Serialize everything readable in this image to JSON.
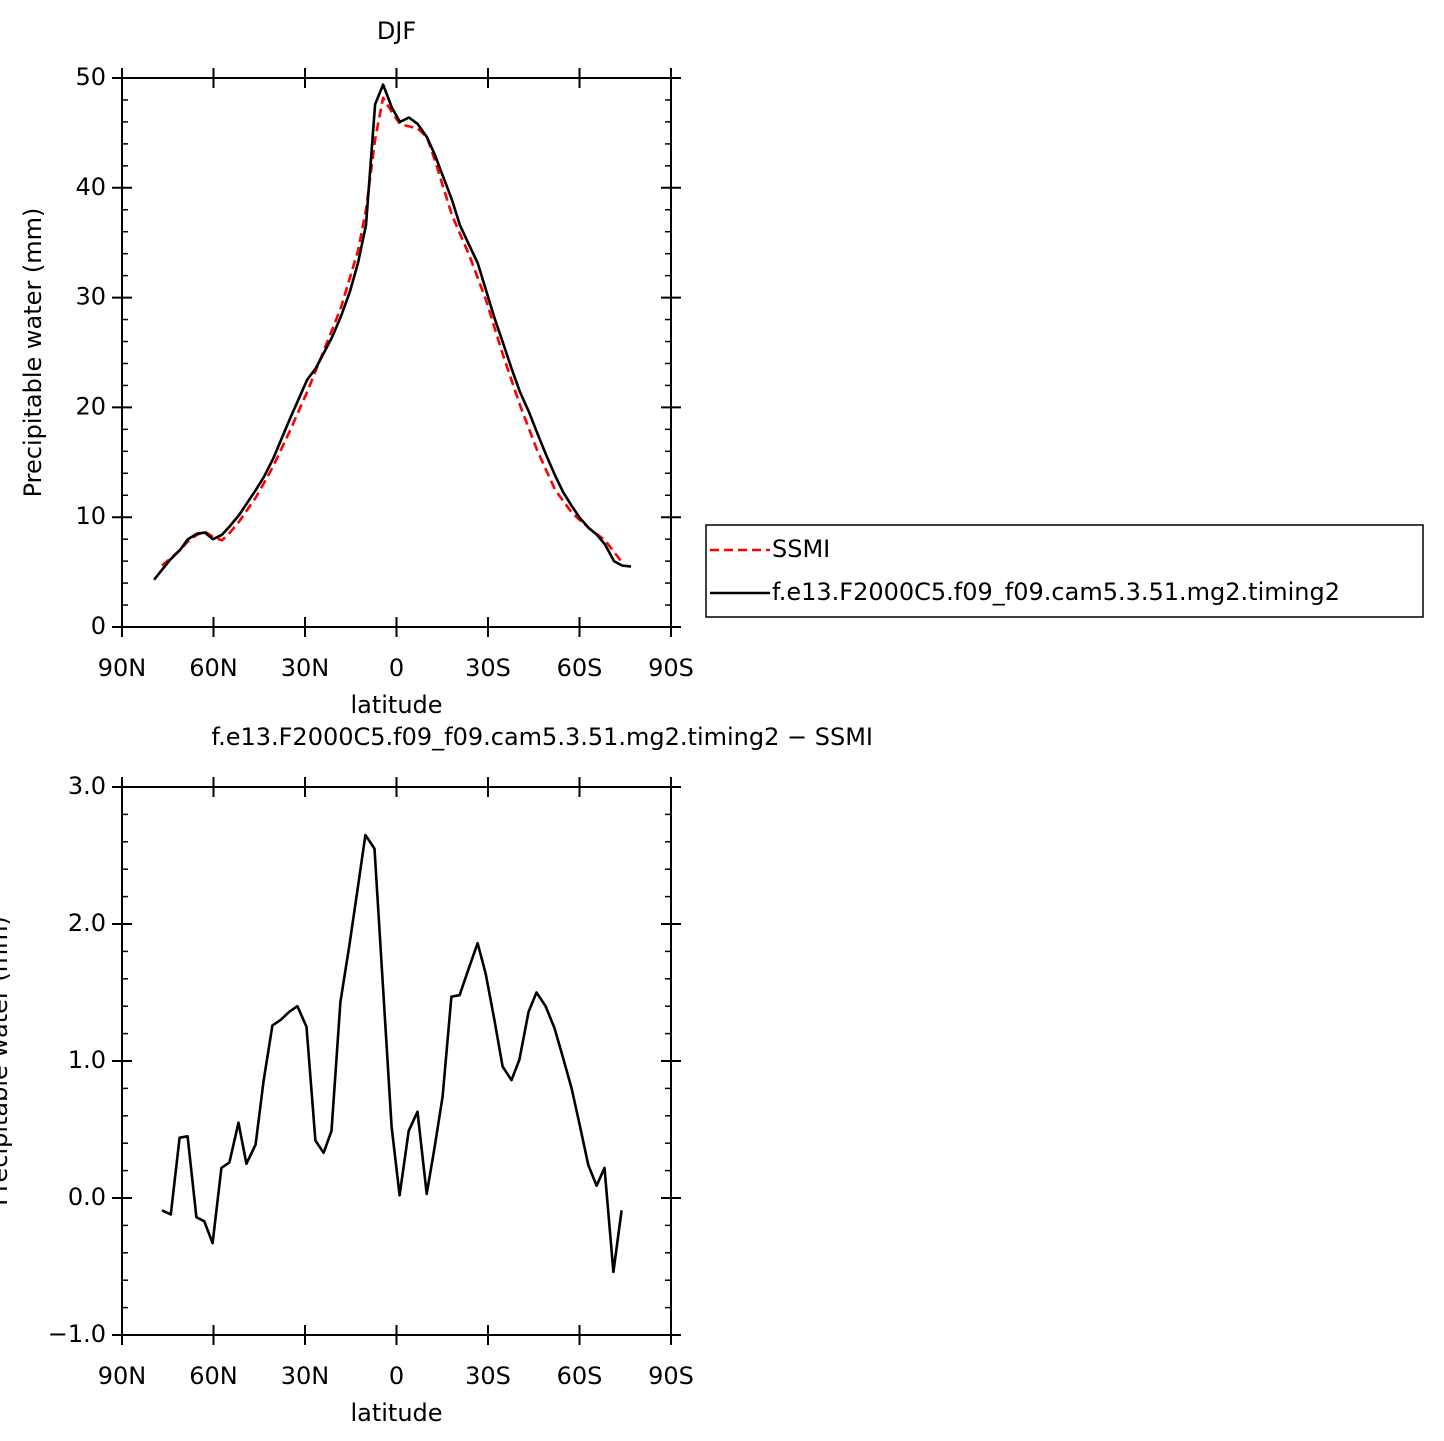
{
  "chart_data": [
    {
      "type": "line",
      "title": "DJF",
      "y_label": "Precipitable water (mm)",
      "x_label": "latitude",
      "xlim": [
        90,
        -90
      ],
      "xticks": [
        {
          "value": 90,
          "label": "90N"
        },
        {
          "value": 60,
          "label": "60N"
        },
        {
          "value": 30,
          "label": "30N"
        },
        0,
        {
          "value": -30,
          "label": "30S"
        },
        {
          "value": -60,
          "label": "60S"
        },
        {
          "value": -90,
          "label": "90S"
        }
      ],
      "ylim": [
        0,
        50
      ],
      "yticks": [
        0,
        10,
        20,
        30,
        40,
        50
      ],
      "yminorticks": [
        2,
        4,
        6,
        8,
        12,
        14,
        16,
        18,
        22,
        24,
        26,
        28,
        32,
        34,
        36,
        38,
        42,
        44,
        46,
        48
      ],
      "legend": "right",
      "series": [
        {
          "name": "SSMI",
          "color": "#ff0000",
          "dash": true,
          "x": [
            76.9,
            73.9,
            71.0,
            68.4,
            65.4,
            62.8,
            60.2,
            57.2,
            54.6,
            51.6,
            46.1,
            40.5,
            34.9,
            29.3,
            23.8,
            18.2,
            12.6,
            10.0,
            7.0,
            4.4,
            1.5,
            -1.1,
            -7.0,
            -10.0,
            -12.6,
            -18.2,
            -23.8,
            -29.3,
            -34.9,
            -40.5,
            -46.1,
            -52.0,
            -57.5,
            -63.1,
            -68.4,
            -73.9
          ],
          "values": [
            5.6,
            6.3,
            7.0,
            7.8,
            8.4,
            8.7,
            8.2,
            7.9,
            8.6,
            9.6,
            11.8,
            14.6,
            17.9,
            21.4,
            25.2,
            29.1,
            34.3,
            38.0,
            44.4,
            48.2,
            46.9,
            45.8,
            45.4,
            44.6,
            42.5,
            37.5,
            33.9,
            29.8,
            24.8,
            20.2,
            16.1,
            12.5,
            10.4,
            9.0,
            7.9,
            5.9
          ]
        },
        {
          "name": "f.e13.F2000C5.f09_f09.cam5.3.51.mg2.timing2",
          "color": "#000000",
          "dash": false,
          "x": [
            79.5,
            74.3,
            71.0,
            68.4,
            65.4,
            62.8,
            60.2,
            57.2,
            54.6,
            51.6,
            46.1,
            43.4,
            40.5,
            34.9,
            29.3,
            26.4,
            21.1,
            18.2,
            15.2,
            12.6,
            10.0,
            7.0,
            4.4,
            1.5,
            -1.1,
            -4.1,
            -7.0,
            -10.0,
            -12.6,
            -18.2,
            -20.8,
            -23.8,
            -26.7,
            -29.3,
            -32.3,
            -34.9,
            -37.9,
            -40.5,
            -43.4,
            -46.1,
            -49.0,
            -52.0,
            -54.6,
            -57.5,
            -60.2,
            -63.1,
            -65.7,
            -68.4,
            -71.3,
            -73.9,
            -76.9
          ],
          "values": [
            4.3,
            6.1,
            7.0,
            8.0,
            8.5,
            8.6,
            8.0,
            8.4,
            9.2,
            10.2,
            12.5,
            13.7,
            15.3,
            19.0,
            22.5,
            23.6,
            26.4,
            28.3,
            30.6,
            33.2,
            36.6,
            47.6,
            49.4,
            47.3,
            46.0,
            46.4,
            45.8,
            44.6,
            43.0,
            38.9,
            36.6,
            34.8,
            33.1,
            30.7,
            28.0,
            25.9,
            23.4,
            21.4,
            19.6,
            17.7,
            15.7,
            13.8,
            12.3,
            11.0,
            9.9,
            9.0,
            8.4,
            7.5,
            6.0,
            5.6,
            5.5
          ]
        }
      ]
    },
    {
      "type": "line",
      "title": "f.e13.F2000C5.f09_f09.cam5.3.51.mg2.timing2 − SSMI",
      "y_label": "Precipitable water (mm)",
      "x_label": "latitude",
      "xlim": [
        90,
        -90
      ],
      "xticks": [
        {
          "value": 90,
          "label": "90N"
        },
        {
          "value": 60,
          "label": "60N"
        },
        {
          "value": 30,
          "label": "30N"
        },
        0,
        {
          "value": -30,
          "label": "30S"
        },
        {
          "value": -60,
          "label": "60S"
        },
        {
          "value": -90,
          "label": "90S"
        }
      ],
      "ylim": [
        -1,
        3
      ],
      "yticks": [
        {
          "value": -1,
          "label": "−1.0"
        },
        {
          "value": 0,
          "label": "0.0"
        },
        {
          "value": 1,
          "label": "1.0"
        },
        {
          "value": 2,
          "label": "2.0"
        },
        {
          "value": 3,
          "label": "3.0"
        }
      ],
      "yminorticks": [
        -0.8,
        -0.6,
        -0.4,
        -0.2,
        0.2,
        0.4,
        0.6,
        0.8,
        1.2,
        1.4,
        1.6,
        1.8,
        2.2,
        2.4,
        2.6,
        2.8
      ],
      "series": [
        {
          "color": "#000000",
          "dash": false,
          "x": [
            76.9,
            74.0,
            71.1,
            68.5,
            65.6,
            63.0,
            60.3,
            57.4,
            54.8,
            51.8,
            49.2,
            46.2,
            43.6,
            40.7,
            38.0,
            35.1,
            32.5,
            29.5,
            26.6,
            23.9,
            21.3,
            18.4,
            15.4,
            12.8,
            10.2,
            7.2,
            4.6,
            1.6,
            -1.0,
            -4.0,
            -6.9,
            -9.9,
            -12.5,
            -15.1,
            -18.0,
            -20.7,
            -23.6,
            -26.6,
            -29.2,
            -32.1,
            -34.8,
            -37.7,
            -40.3,
            -43.3,
            -45.9,
            -48.9,
            -51.8,
            -54.4,
            -57.4,
            -60.0,
            -62.9,
            -65.6,
            -68.2,
            -71.1,
            -73.8
          ],
          "values": [
            -0.09,
            -0.12,
            0.44,
            0.45,
            -0.14,
            -0.17,
            -0.33,
            0.22,
            0.26,
            0.55,
            0.25,
            0.39,
            0.85,
            1.26,
            1.3,
            1.36,
            1.4,
            1.25,
            0.42,
            0.33,
            0.49,
            1.43,
            1.85,
            2.25,
            2.65,
            2.55,
            1.6,
            0.52,
            0.02,
            0.49,
            0.63,
            0.03,
            0.37,
            0.74,
            1.47,
            1.48,
            1.67,
            1.86,
            1.64,
            1.3,
            0.96,
            0.86,
            1.01,
            1.36,
            1.5,
            1.4,
            1.24,
            1.04,
            0.8,
            0.54,
            0.24,
            0.09,
            0.22,
            -0.54,
            -0.09
          ]
        }
      ]
    }
  ]
}
